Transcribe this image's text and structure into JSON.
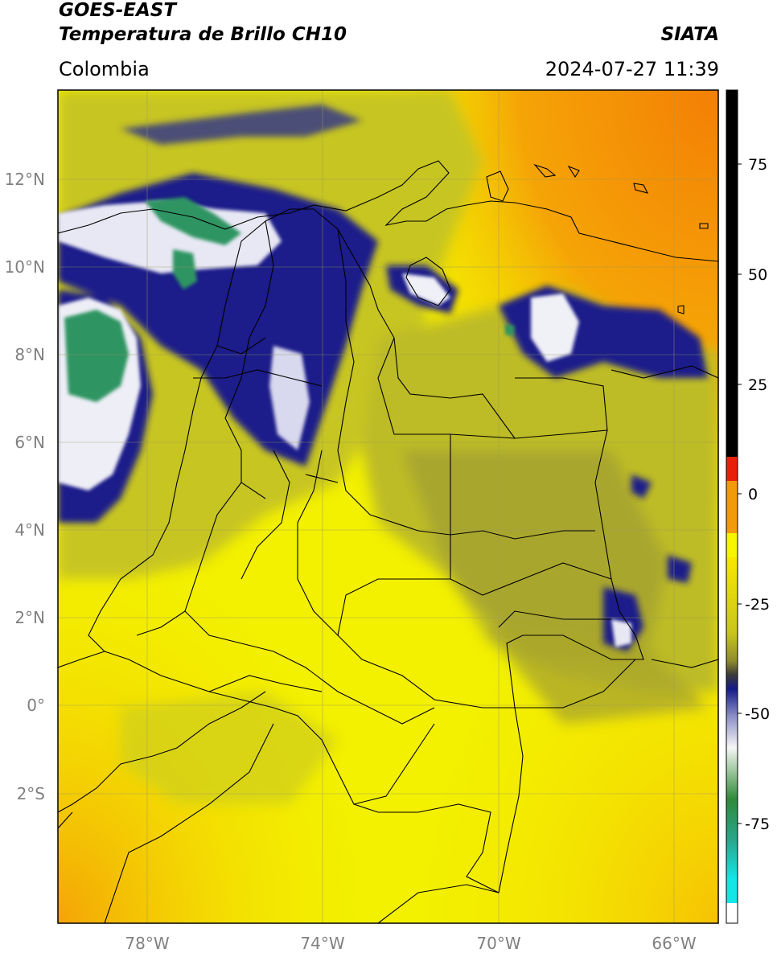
{
  "header": {
    "satellite": "GOES-EAST",
    "product": "Temperatura de Brillo CH10",
    "agency": "SIATA",
    "region": "Colombia",
    "datetime": "2024-07-27 11:39"
  },
  "axes": {
    "lat_labels": [
      "12°N",
      "10°N",
      "8°N",
      "6°N",
      "4°N",
      "2°N",
      "0°",
      "2°S"
    ],
    "lon_labels": [
      "78°W",
      "74°W",
      "70°W",
      "66°W"
    ]
  },
  "colorbar": {
    "ticks": [
      "75",
      "50",
      "25",
      "0",
      "-25",
      "-50",
      "-75"
    ],
    "colors": {
      "top": "#000000",
      "red": "#e8200a",
      "orange": "#f39a0a",
      "yellow": "#f7f500",
      "olive": "#9a9628",
      "navy": "#141a86",
      "white": "#f4f4f4",
      "green": "#2e8a3a",
      "teal": "#2aa78e",
      "cyan": "#14e6e6"
    }
  },
  "map_colors": {
    "yellow": "#f3f000",
    "orange": "#f59a05",
    "olive": "#c7c523",
    "dark_olive": "#9c9a2f",
    "navy": "#1b1f8a",
    "white": "#f0f0f7",
    "green": "#2e9462"
  }
}
